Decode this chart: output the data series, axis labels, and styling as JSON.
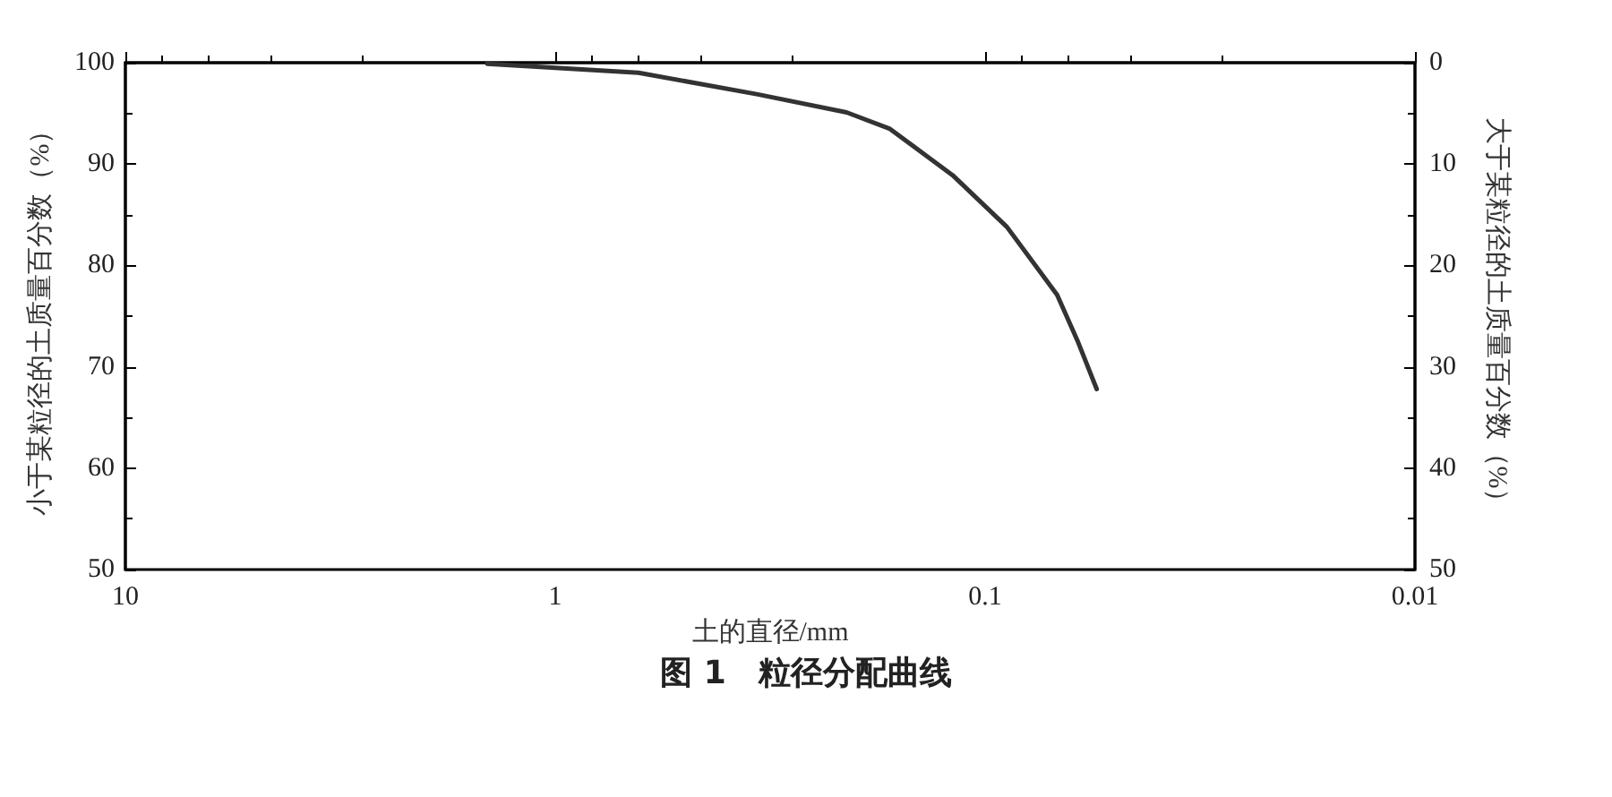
{
  "chart_data": {
    "type": "line",
    "title": "图 1　粒径分配曲线",
    "xlabel": "土的直径/mm",
    "ylabel": "小于某粒径的土质量百分数（%）",
    "y2label": "大于某粒径的土质量百分数（%）",
    "log": "x",
    "xlim": [
      10,
      0.01
    ],
    "xticks": [
      10,
      1,
      0.1,
      0.01
    ],
    "ylim": [
      50,
      100
    ],
    "yticks": [
      50,
      60,
      70,
      80,
      90,
      100
    ],
    "y2lim": [
      50,
      0
    ],
    "y2ticks": [
      0,
      10,
      20,
      30,
      40,
      50
    ],
    "grid": false,
    "marker": "none",
    "line_style": "solid",
    "series": [
      {
        "color": "#333333",
        "x": [
          1.44,
          0.64,
          0.34,
          0.21,
          0.167,
          0.119,
          0.089,
          0.068,
          0.061,
          0.055
        ],
        "values": [
          99.9,
          99.0,
          96.9,
          95.1,
          93.5,
          88.9,
          83.8,
          77.1,
          72.6,
          67.8
        ]
      }
    ]
  }
}
